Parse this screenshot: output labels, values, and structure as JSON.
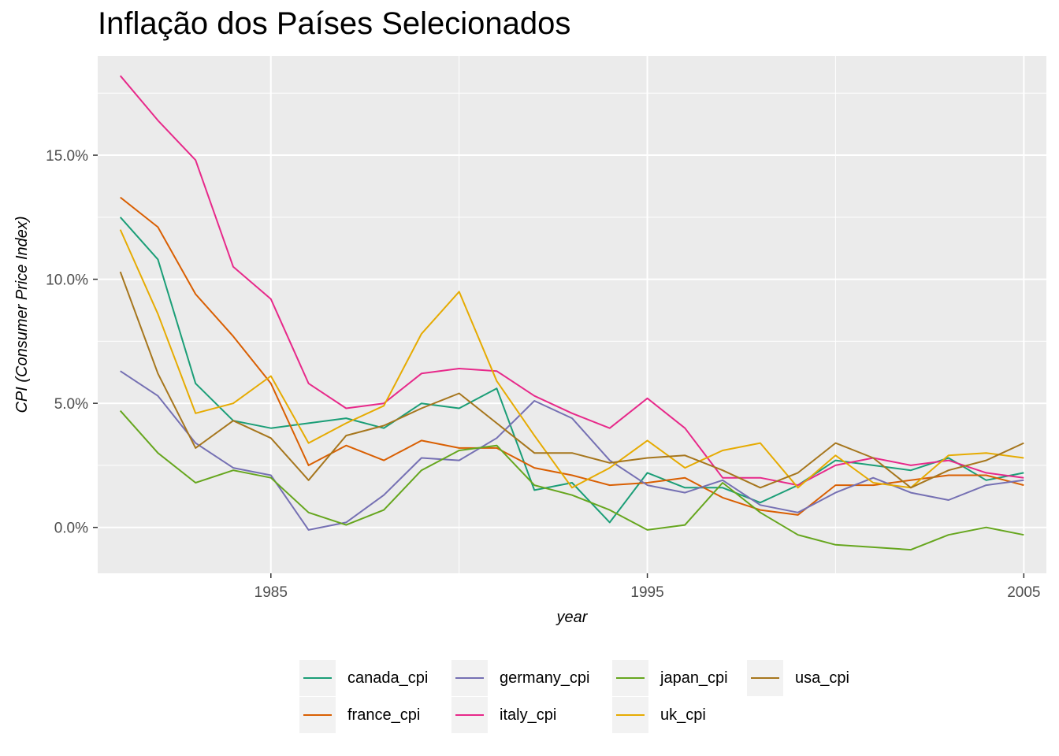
{
  "title": "Inflação dos Países Selecionados",
  "chart_data": {
    "type": "line",
    "title": "Inflação dos Países Selecionados",
    "xlabel": "year",
    "ylabel": "CPI (Consumer Price Index)",
    "x": [
      1981,
      1982,
      1983,
      1984,
      1985,
      1986,
      1987,
      1988,
      1989,
      1990,
      1991,
      1992,
      1993,
      1994,
      1995,
      1996,
      1997,
      1998,
      1999,
      2000,
      2001,
      2002,
      2003,
      2004,
      2005
    ],
    "xlim": [
      1980.4,
      2005.6
    ],
    "ylim": [
      -1.85,
      19.0
    ],
    "x_ticks": [
      1985,
      1995,
      2005
    ],
    "x_tick_labels": [
      "1985",
      "1995",
      "2005"
    ],
    "y_ticks": [
      0,
      5,
      10,
      15
    ],
    "y_tick_labels": [
      "0.0%",
      "5.0%",
      "10.0%",
      "15.0%"
    ],
    "grid": true,
    "legend_position": "bottom",
    "series": [
      {
        "name": "canada_cpi",
        "color": "#1b9e77",
        "values": [
          12.5,
          10.8,
          5.8,
          4.3,
          4.0,
          4.2,
          4.4,
          4.0,
          5.0,
          4.8,
          5.6,
          1.5,
          1.8,
          0.2,
          2.2,
          1.6,
          1.6,
          1.0,
          1.7,
          2.7,
          2.5,
          2.3,
          2.8,
          1.9,
          2.2
        ]
      },
      {
        "name": "france_cpi",
        "color": "#d95f02",
        "values": [
          13.3,
          12.1,
          9.4,
          7.7,
          5.8,
          2.5,
          3.3,
          2.7,
          3.5,
          3.2,
          3.2,
          2.4,
          2.1,
          1.7,
          1.8,
          2.0,
          1.2,
          0.7,
          0.5,
          1.7,
          1.7,
          1.9,
          2.1,
          2.1,
          1.7
        ]
      },
      {
        "name": "germany_cpi",
        "color": "#7570b3",
        "values": [
          6.3,
          5.3,
          3.4,
          2.4,
          2.1,
          -0.1,
          0.2,
          1.3,
          2.8,
          2.7,
          3.6,
          5.1,
          4.4,
          2.7,
          1.7,
          1.4,
          1.9,
          0.9,
          0.6,
          1.4,
          2.0,
          1.4,
          1.1,
          1.7,
          1.9
        ]
      },
      {
        "name": "italy_cpi",
        "color": "#e7298a",
        "values": [
          18.2,
          16.4,
          14.8,
          10.5,
          9.2,
          5.8,
          4.8,
          5.0,
          6.2,
          6.4,
          6.3,
          5.3,
          4.6,
          4.0,
          5.2,
          4.0,
          2.0,
          2.0,
          1.7,
          2.5,
          2.8,
          2.5,
          2.7,
          2.2,
          2.0
        ]
      },
      {
        "name": "japan_cpi",
        "color": "#66a61e",
        "values": [
          4.7,
          3.0,
          1.8,
          2.3,
          2.0,
          0.6,
          0.1,
          0.7,
          2.3,
          3.1,
          3.3,
          1.7,
          1.3,
          0.7,
          -0.1,
          0.1,
          1.8,
          0.6,
          -0.3,
          -0.7,
          -0.8,
          -0.9,
          -0.3,
          0.0,
          -0.3
        ]
      },
      {
        "name": "uk_cpi",
        "color": "#e6ab02",
        "values": [
          12.0,
          8.6,
          4.6,
          5.0,
          6.1,
          3.4,
          4.2,
          4.9,
          7.8,
          9.5,
          5.9,
          3.7,
          1.6,
          2.4,
          3.5,
          2.4,
          3.1,
          3.4,
          1.6,
          2.9,
          1.8,
          1.6,
          2.9,
          3.0,
          2.8
        ]
      },
      {
        "name": "usa_cpi",
        "color": "#a6761d",
        "values": [
          10.3,
          6.2,
          3.2,
          4.3,
          3.6,
          1.9,
          3.7,
          4.1,
          4.8,
          5.4,
          4.2,
          3.0,
          3.0,
          2.6,
          2.8,
          2.9,
          2.3,
          1.6,
          2.2,
          3.4,
          2.8,
          1.6,
          2.3,
          2.7,
          3.4
        ]
      }
    ]
  },
  "legend": {
    "items": [
      {
        "label": "canada_cpi",
        "color": "#1b9e77"
      },
      {
        "label": "france_cpi",
        "color": "#d95f02"
      },
      {
        "label": "germany_cpi",
        "color": "#7570b3"
      },
      {
        "label": "italy_cpi",
        "color": "#e7298a"
      },
      {
        "label": "japan_cpi",
        "color": "#66a61e"
      },
      {
        "label": "uk_cpi",
        "color": "#e6ab02"
      },
      {
        "label": "usa_cpi",
        "color": "#a6761d"
      }
    ]
  }
}
